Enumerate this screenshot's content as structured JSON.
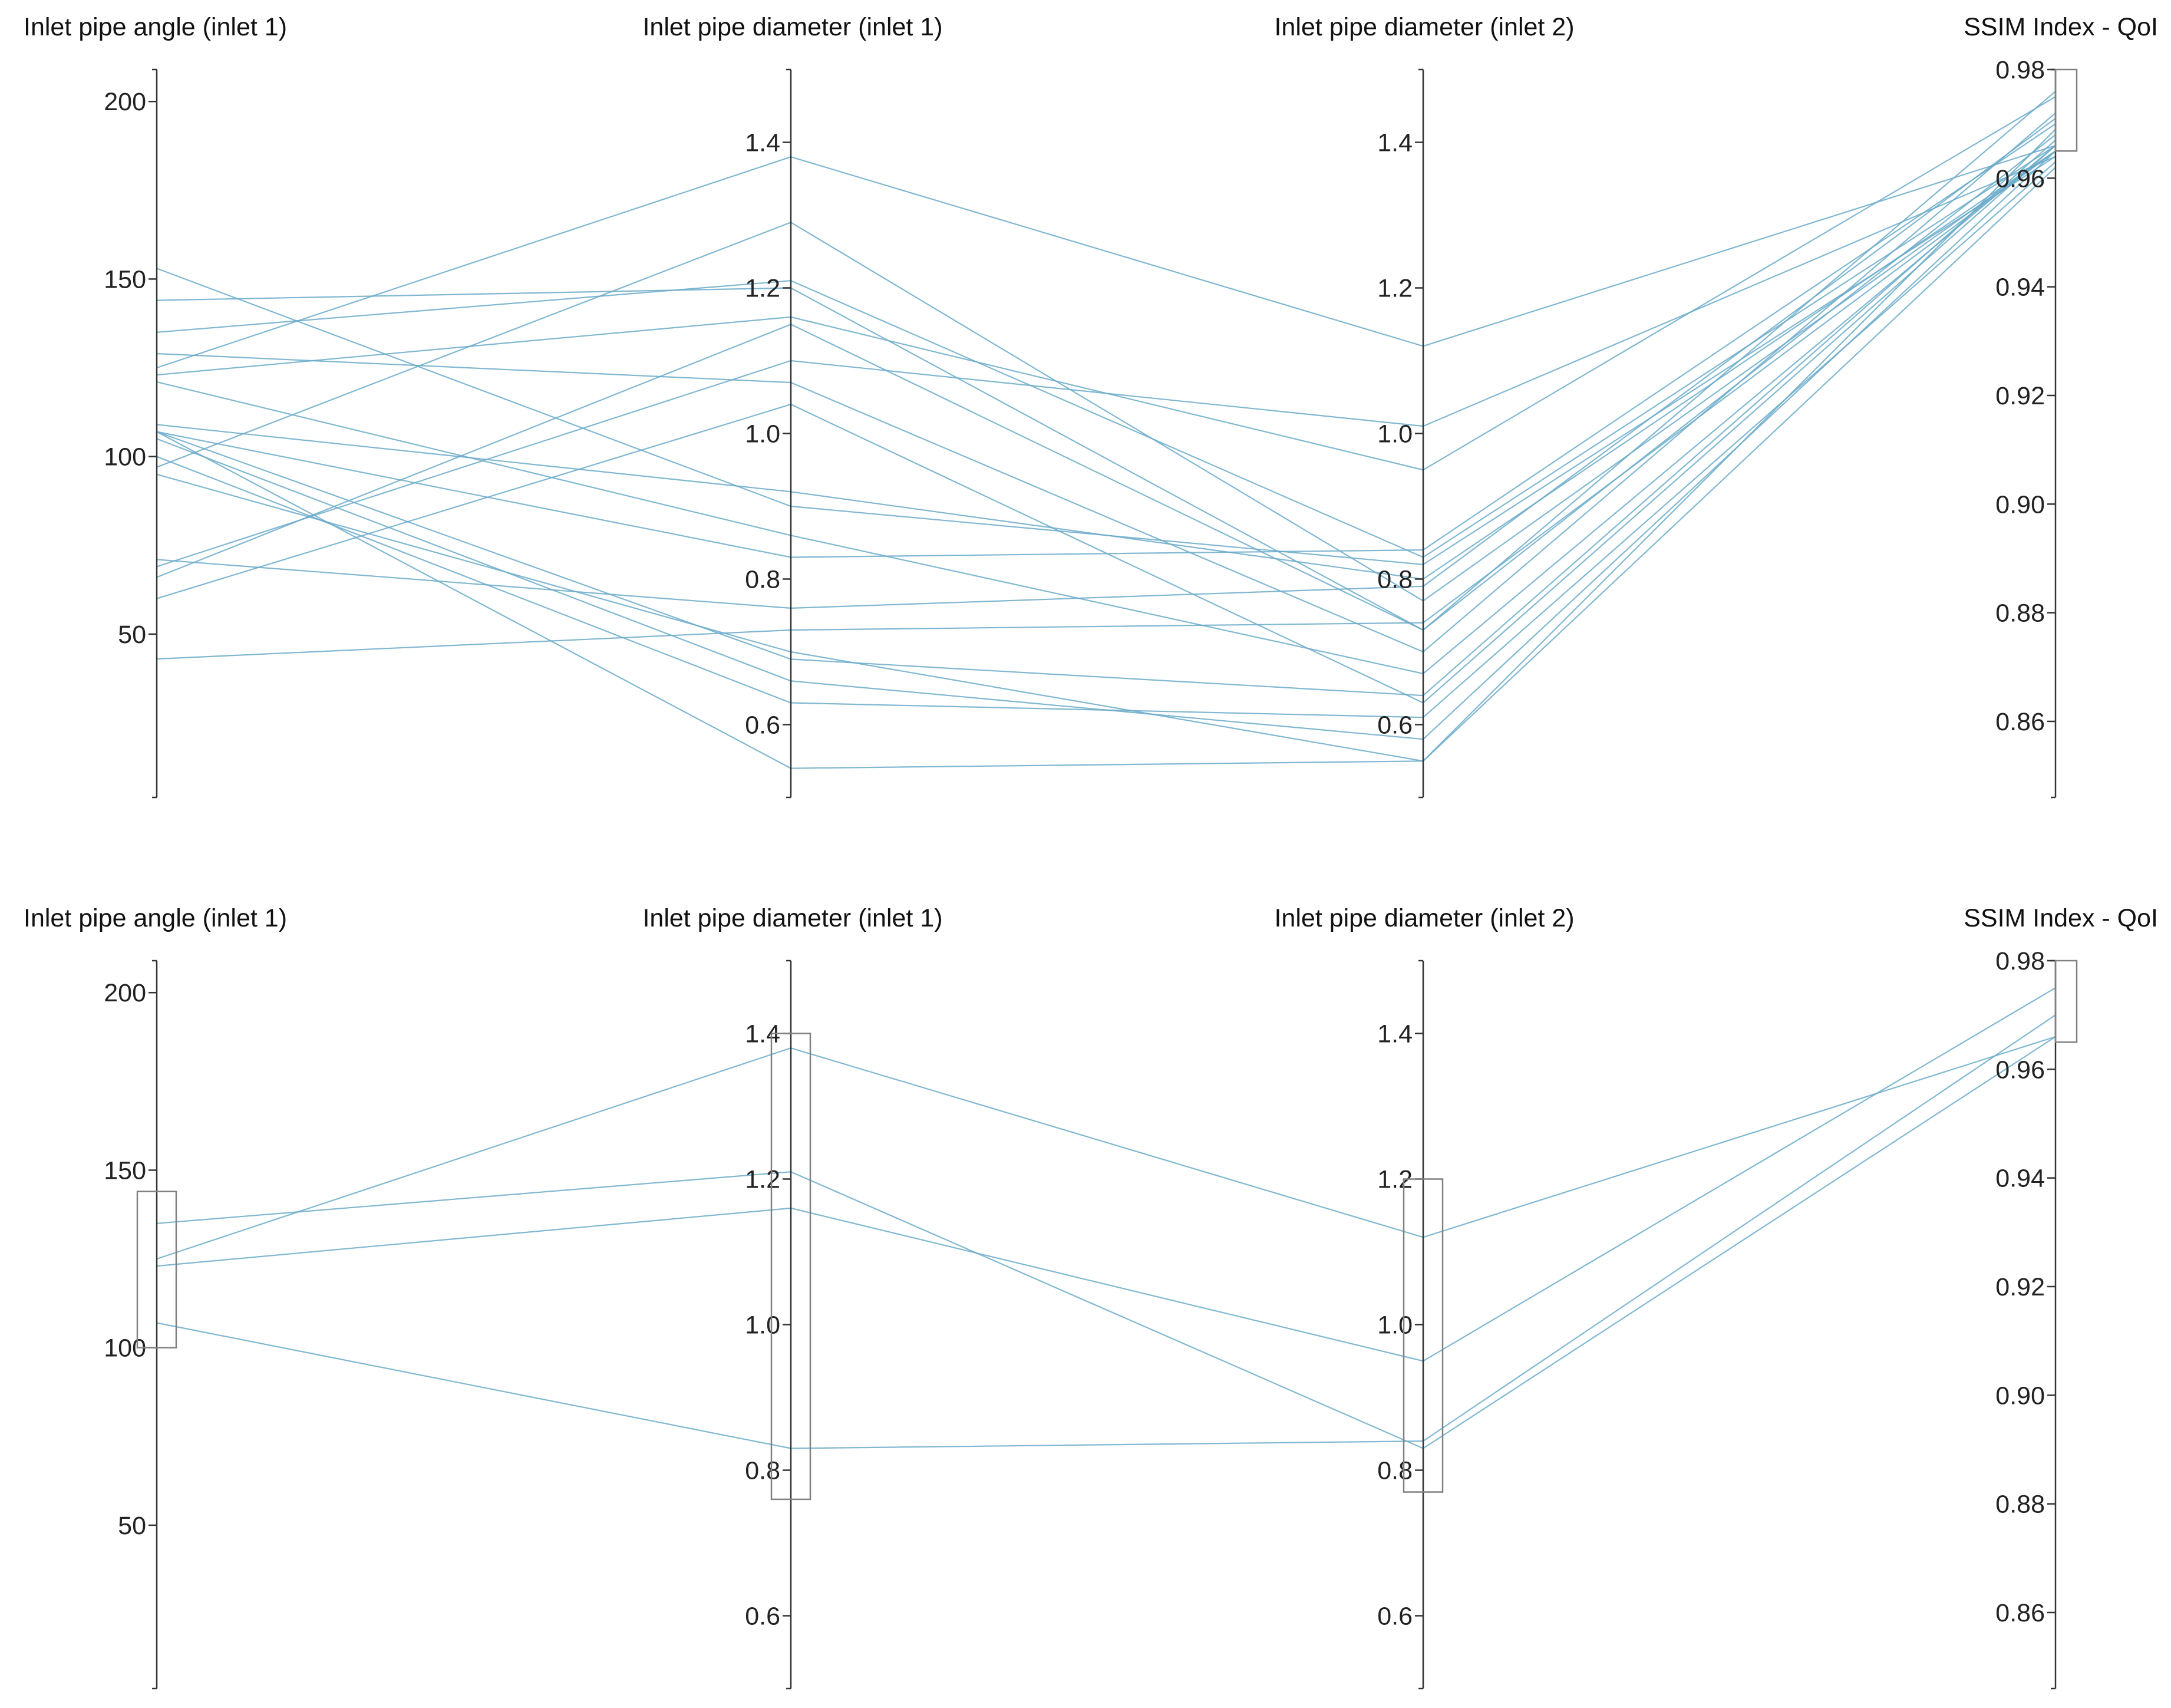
{
  "chart_data": [
    {
      "type": "parallel-coordinates",
      "line_color": "#6aaac9",
      "axes": [
        {
          "title": "Inlet pipe angle (inlet 1)",
          "domain": [
            4,
            209
          ],
          "ticks": [
            50,
            100,
            150,
            200
          ],
          "tick_labels": [
            "50",
            "100",
            "150",
            "200"
          ]
        },
        {
          "title": "Inlet pipe diameter (inlet 1)",
          "domain": [
            0.5,
            1.5
          ],
          "ticks": [
            0.6,
            0.8,
            1.0,
            1.2,
            1.4
          ],
          "tick_labels": [
            "0.6",
            "0.8",
            "1.0",
            "1.2",
            "1.4"
          ]
        },
        {
          "title": "Inlet pipe diameter (inlet 2)",
          "domain": [
            0.5,
            1.5
          ],
          "ticks": [
            0.6,
            0.8,
            1.0,
            1.2,
            1.4
          ],
          "tick_labels": [
            "0.6",
            "0.8",
            "1.0",
            "1.2",
            "1.4"
          ]
        },
        {
          "title": "SSIM Index - QoI",
          "domain": [
            0.846,
            0.98
          ],
          "ticks": [
            0.86,
            0.88,
            0.9,
            0.92,
            0.94,
            0.96,
            0.98
          ],
          "tick_labels": [
            "0.86",
            "0.88",
            "0.90",
            "0.92",
            "0.94",
            "0.96",
            "0.98"
          ]
        }
      ],
      "brushes": [
        {
          "axis": 3,
          "range": [
            0.965,
            0.98
          ]
        }
      ],
      "lines": [
        [
          125,
          1.38,
          1.12,
          0.966
        ],
        [
          123,
          1.16,
          0.95,
          0.975
        ],
        [
          135,
          1.21,
          0.83,
          0.966
        ],
        [
          107,
          0.83,
          0.84,
          0.97
        ],
        [
          153,
          0.9,
          0.82,
          0.964
        ],
        [
          144,
          1.2,
          0.73,
          0.968
        ],
        [
          129,
          1.07,
          0.7,
          0.972
        ],
        [
          121,
          0.86,
          0.67,
          0.966
        ],
        [
          109,
          0.92,
          0.8,
          0.965
        ],
        [
          107,
          0.69,
          0.64,
          0.967
        ],
        [
          105,
          0.66,
          0.58,
          0.965
        ],
        [
          97,
          1.29,
          0.77,
          0.965
        ],
        [
          95,
          0.7,
          0.55,
          0.969
        ],
        [
          60,
          1.04,
          0.63,
          0.966
        ],
        [
          66,
          1.15,
          0.73,
          0.976
        ],
        [
          69,
          1.1,
          1.01,
          0.964
        ],
        [
          71,
          0.76,
          0.79,
          0.971
        ],
        [
          43,
          0.73,
          0.74,
          0.965
        ],
        [
          100,
          0.63,
          0.61,
          0.963
        ],
        [
          107,
          0.54,
          0.55,
          0.962
        ]
      ]
    },
    {
      "type": "parallel-coordinates",
      "line_color": "#6aaac9",
      "axes": [
        {
          "title": "Inlet pipe angle (inlet 1)",
          "domain": [
            4,
            209
          ],
          "ticks": [
            50,
            100,
            150,
            200
          ],
          "tick_labels": [
            "50",
            "100",
            "150",
            "200"
          ]
        },
        {
          "title": "Inlet pipe diameter (inlet 1)",
          "domain": [
            0.5,
            1.5
          ],
          "ticks": [
            0.6,
            0.8,
            1.0,
            1.2,
            1.4
          ],
          "tick_labels": [
            "0.6",
            "0.8",
            "1.0",
            "1.2",
            "1.4"
          ]
        },
        {
          "title": "Inlet pipe diameter (inlet 2)",
          "domain": [
            0.5,
            1.5
          ],
          "ticks": [
            0.6,
            0.8,
            1.0,
            1.2,
            1.4
          ],
          "tick_labels": [
            "0.6",
            "0.8",
            "1.0",
            "1.2",
            "1.4"
          ]
        },
        {
          "title": "SSIM Index - QoI",
          "domain": [
            0.846,
            0.98
          ],
          "ticks": [
            0.86,
            0.88,
            0.9,
            0.92,
            0.94,
            0.96,
            0.98
          ],
          "tick_labels": [
            "0.86",
            "0.88",
            "0.90",
            "0.92",
            "0.94",
            "0.96",
            "0.98"
          ]
        }
      ],
      "brushes": [
        {
          "axis": 0,
          "range": [
            100,
            144
          ]
        },
        {
          "axis": 1,
          "range": [
            0.76,
            1.4
          ]
        },
        {
          "axis": 2,
          "range": [
            0.77,
            1.2
          ]
        },
        {
          "axis": 3,
          "range": [
            0.965,
            0.98
          ]
        }
      ],
      "lines": [
        [
          125,
          1.38,
          1.12,
          0.966
        ],
        [
          123,
          1.16,
          0.95,
          0.975
        ],
        [
          135,
          1.21,
          0.83,
          0.966
        ],
        [
          107,
          0.83,
          0.84,
          0.97
        ]
      ]
    }
  ]
}
